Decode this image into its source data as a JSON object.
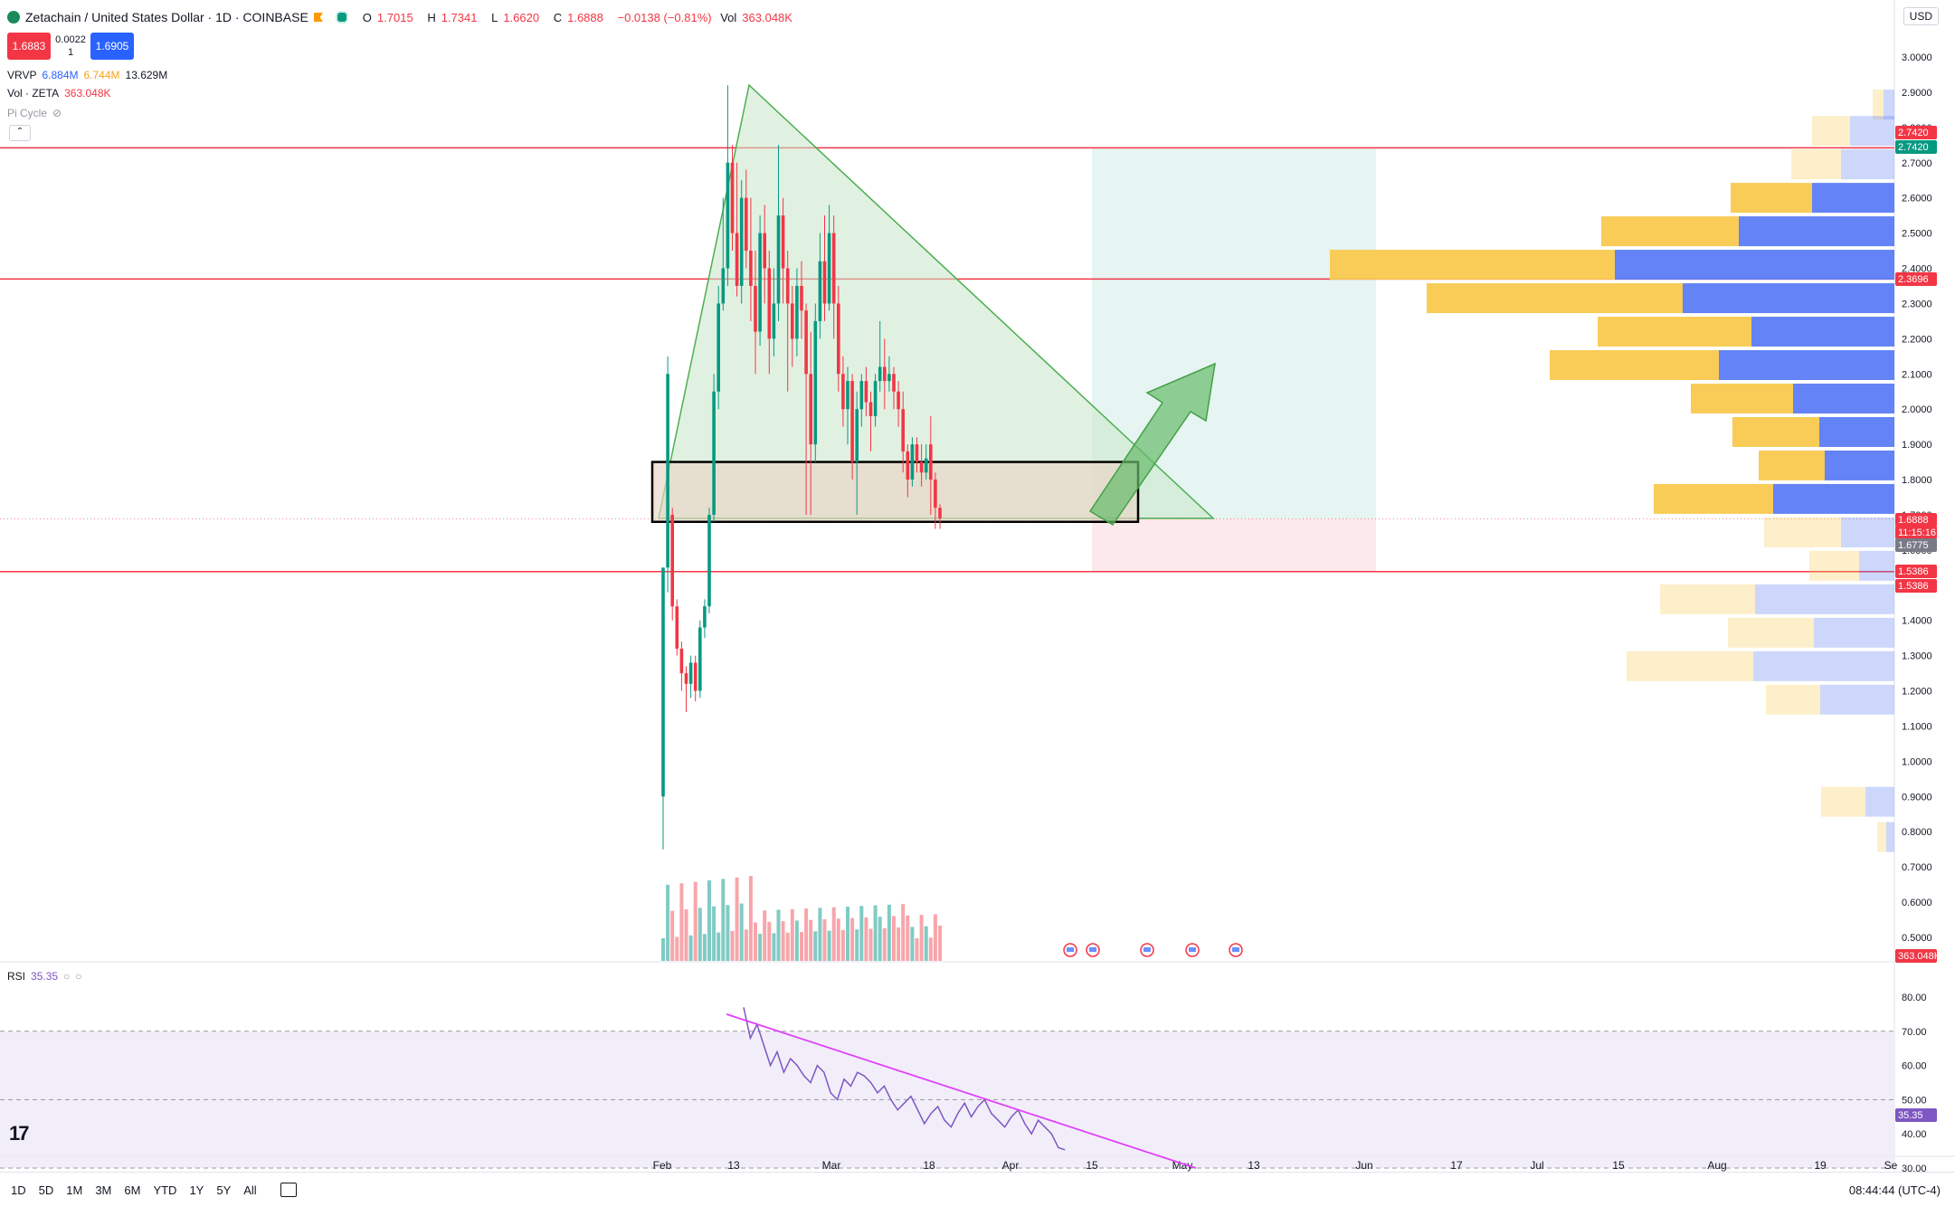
{
  "header": {
    "symbol_title": "Zetachain / United States Dollar · 1D · COINBASE",
    "open_label": "O",
    "open": "1.7015",
    "high_label": "H",
    "high": "1.7341",
    "low_label": "L",
    "low": "1.6620",
    "close_label": "C",
    "close": "1.6888",
    "change": "−0.0138 (−0.81%)",
    "vol_label": "Vol",
    "vol": "363.048K",
    "sell_price": "1.6883",
    "spread": "0.0022",
    "qty": "1",
    "buy_price": "1.6905"
  },
  "indicators": {
    "vrvp_label": "VRVP",
    "vrvp_v1": "6.884M",
    "vrvp_v2": "6.744M",
    "vrvp_v3": "13.629M",
    "vol_label": "Vol · ZETA",
    "vol_value": "363.048K",
    "pi_cycle_label": "Pi Cycle",
    "rsi_label": "RSI",
    "rsi_value": "35.35"
  },
  "currency": "USD",
  "price_axis": {
    "ticks": [
      "3.0000",
      "2.9000",
      "2.8000",
      "2.7000",
      "2.6000",
      "2.5000",
      "2.4000",
      "2.3000",
      "2.2000",
      "2.1000",
      "2.0000",
      "1.9000",
      "1.8000",
      "1.7000",
      "1.6000",
      "1.5000",
      "1.4000",
      "1.3000",
      "1.2000",
      "1.1000",
      "1.0000",
      "0.9000",
      "0.8000",
      "0.7000",
      "0.6000",
      "0.5000"
    ],
    "labels": [
      {
        "text": "2.7420",
        "color": "#f23645"
      },
      {
        "text": "2.7420",
        "color": "#089981"
      },
      {
        "text": "2.3696",
        "color": "#f23645"
      },
      {
        "text": "1.6888",
        "color": "#f23645"
      },
      {
        "text": "11:15:16",
        "color": "#f23645"
      },
      {
        "text": "1.6775",
        "color": "#787b86"
      },
      {
        "text": "1.5386",
        "color": "#f23645"
      },
      {
        "text": "1.5386",
        "color": "#f23645"
      },
      {
        "text": "363.048K",
        "color": "#f23645"
      },
      {
        "text": "35.35",
        "color": "#7e57c2"
      }
    ]
  },
  "rsi_axis": [
    "80.00",
    "70.00",
    "60.00",
    "50.00",
    "40.00",
    "30.00"
  ],
  "time_axis": [
    "Feb",
    "13",
    "Mar",
    "18",
    "Apr",
    "15",
    "May",
    "13",
    "Jun",
    "17",
    "Jul",
    "15",
    "Aug",
    "19",
    "Se"
  ],
  "timeframes": [
    "1D",
    "5D",
    "1M",
    "3M",
    "6M",
    "YTD",
    "1Y",
    "5Y",
    "All"
  ],
  "clock": "08:44:44 (UTC-4)",
  "colors": {
    "up": "#089981",
    "down": "#f23645",
    "volume_up": "#80cbc4",
    "volume_down": "#f7a6ab",
    "vp_blue": "#5b7cf5",
    "vp_yellow": "#f9c94e",
    "rsi_line": "#7e57c2",
    "trendline": "#e040fb"
  }
}
